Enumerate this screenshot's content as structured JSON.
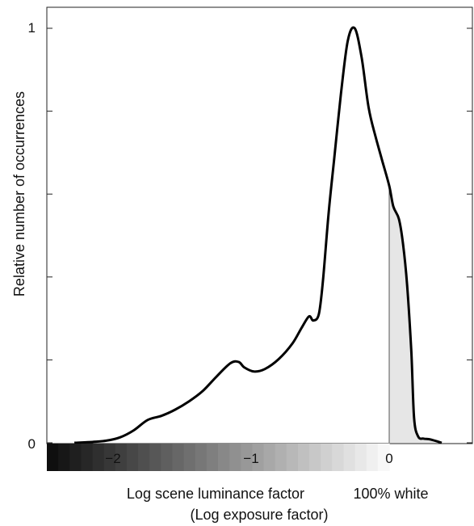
{
  "chart_data": {
    "type": "area",
    "title": "",
    "xlabel": "Log scene luminance factor",
    "xlabel_secondary": "(Log exposure factor)",
    "ylabel": "Relative number of occurrences",
    "xlim": [
      -2.5,
      0.6
    ],
    "ylim": [
      0,
      1
    ],
    "x_ticks": [
      -2,
      -1,
      0
    ],
    "x_tick_labels": [
      "−2",
      "−1",
      "0"
    ],
    "y_ticks": [
      0,
      0.2,
      0.4,
      0.6,
      0.8,
      1
    ],
    "y_tick_labels": [
      "0",
      "",
      "",
      "",
      "",
      "1"
    ],
    "annotation": "100% white",
    "marker_x": 0,
    "shaded_region": [
      0,
      0.22
    ],
    "shade_color": "#e6e6e6",
    "line_color": "#000000",
    "grid": false,
    "series": [
      {
        "x": [
          -2.28,
          -2.15,
          -2.05,
          -1.95,
          -1.85,
          -1.75,
          -1.65,
          -1.55,
          -1.45,
          -1.35,
          -1.25,
          -1.15,
          -1.09,
          -1.05,
          -0.98,
          -0.9,
          -0.8,
          -0.7,
          -0.63,
          -0.58,
          -0.55,
          -0.51,
          -0.48,
          -0.44,
          -0.4,
          -0.35,
          -0.3,
          -0.25,
          -0.2,
          -0.15,
          -0.1,
          -0.05,
          0.0,
          0.03,
          0.07,
          0.1,
          0.13,
          0.16,
          0.18,
          0.21,
          0.25,
          0.3,
          0.38
        ],
        "y": [
          0.0,
          0.002,
          0.005,
          0.013,
          0.03,
          0.055,
          0.065,
          0.08,
          0.1,
          0.125,
          0.16,
          0.192,
          0.195,
          0.182,
          0.172,
          0.178,
          0.202,
          0.24,
          0.28,
          0.305,
          0.295,
          0.31,
          0.39,
          0.55,
          0.68,
          0.84,
          0.97,
          1.0,
          0.93,
          0.81,
          0.74,
          0.68,
          0.62,
          0.57,
          0.54,
          0.48,
          0.38,
          0.22,
          0.06,
          0.015,
          0.01,
          0.008,
          0.0
        ]
      }
    ]
  }
}
